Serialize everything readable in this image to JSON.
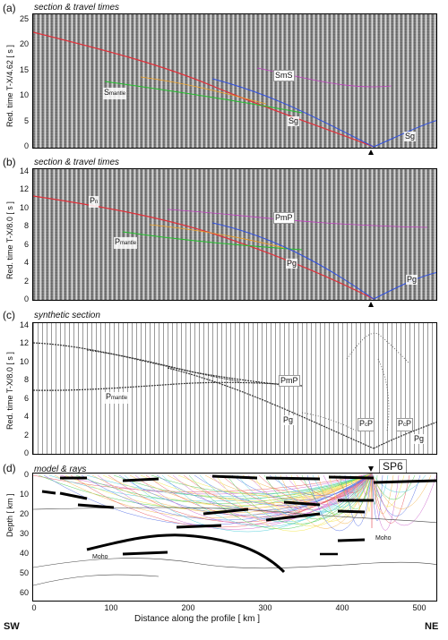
{
  "panels": {
    "a": {
      "label": "(a)",
      "title": "section & travel times",
      "ylabel": "Red. time T-X/4.62 [ s ]",
      "yticks": [
        "0",
        "5",
        "10",
        "15",
        "20",
        "25"
      ],
      "phases": {
        "smantle_main": "S",
        "smantle_sub": "mantle",
        "sms": "SmS",
        "sg1": "Sg",
        "sg2": "Sg"
      }
    },
    "b": {
      "label": "(b)",
      "title": "section & travel times",
      "ylabel": "Red. time T-X/8.0 [ s ]",
      "yticks": [
        "0",
        "2",
        "4",
        "6",
        "8",
        "10",
        "12",
        "14"
      ],
      "phases": {
        "pn_main": "P",
        "pn_sub": "n",
        "pmp": "PmP",
        "pmantle_main": "P",
        "pmantle_sub": "mantle",
        "pg1": "Pg",
        "pg2": "Pg"
      }
    },
    "c": {
      "label": "(c)",
      "title": "synthetic section",
      "ylabel": "Red. time T-X/8.0 [ s ]",
      "yticks": [
        "0",
        "2",
        "4",
        "6",
        "8",
        "10",
        "12",
        "14"
      ],
      "phases": {
        "pmp": "PmP",
        "pmantle_main": "P",
        "pmantle_sub": "mantle",
        "pg1": "Pg",
        "pcp1_main": "P",
        "pcp1_sub": "c",
        "pcp1_end": "P",
        "pcp2_main": "P",
        "pcp2_sub": "c",
        "pcp2_end": "P",
        "pg2": "Pg"
      }
    },
    "d": {
      "label": "(d)",
      "title": "model & rays",
      "ylabel": "Depth [ km ]",
      "yticks": [
        "0",
        "10",
        "20",
        "30",
        "40",
        "50",
        "60"
      ],
      "moho1": "Moho",
      "moho2": "Moho",
      "sp": "SP6"
    }
  },
  "xaxis": {
    "title": "Distance along the profile [ km ]",
    "ticks": [
      "0",
      "100",
      "200",
      "300",
      "400",
      "500"
    ],
    "left": "SW",
    "right": "NE"
  },
  "colors": {
    "red": "#e0303a",
    "green": "#22c02c",
    "blue": "#3050e0",
    "cyan": "#20c0d0",
    "orange": "#f0a020",
    "magenta": "#c040c0",
    "yellow": "#f0e020"
  }
}
